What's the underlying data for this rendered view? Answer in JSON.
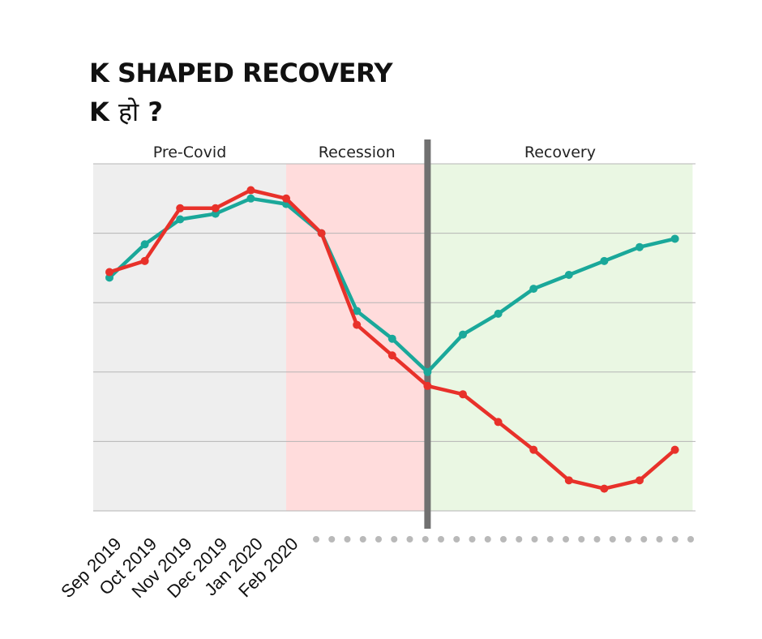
{
  "header": {
    "title": "K SHAPED RECOVERY",
    "subtitle_prefix": "K",
    "subtitle_hindi": "हो",
    "subtitle_suffix": "?"
  },
  "chart_data": {
    "type": "line",
    "title": "K SHAPED RECOVERY",
    "xlabel": "",
    "ylabel": "",
    "ylim": [
      0,
      5
    ],
    "grid": true,
    "x_tick_labels": [
      "Sep 2019",
      "Oct 2019",
      "Nov 2019",
      "Dec 2019",
      "Jan 2020",
      "Feb 2020"
    ],
    "regions": [
      {
        "label": "Pre-Covid",
        "start_index": -0.5,
        "end_index": 5,
        "color": "#eeeeee"
      },
      {
        "label": "Recession",
        "start_index": 5,
        "end_index": 9,
        "color": "#ffdcdc"
      },
      {
        "label": "Recovery",
        "start_index": 9,
        "end_index": 16.5,
        "color": "#eaf7e3"
      }
    ],
    "divider_index": 9,
    "series": [
      {
        "color": "#1aa89a",
        "values": [
          3.36,
          3.84,
          4.2,
          4.28,
          4.5,
          4.42,
          4.0,
          2.88,
          2.48,
          2.0,
          2.54,
          2.84,
          3.2,
          3.4,
          3.6,
          3.8,
          3.92
        ]
      },
      {
        "color": "#e8312a",
        "values": [
          3.44,
          3.6,
          4.36,
          4.36,
          4.62,
          4.5,
          4.0,
          2.68,
          2.24,
          1.8,
          1.68,
          1.28,
          0.88,
          0.44,
          0.32,
          0.44,
          0.88
        ]
      }
    ]
  }
}
